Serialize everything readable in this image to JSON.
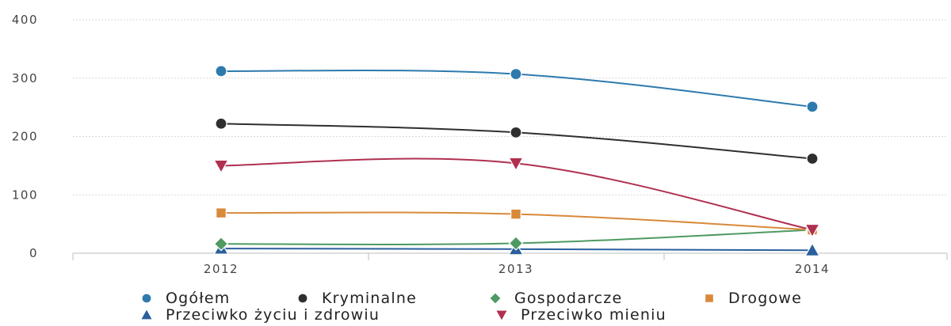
{
  "chart_data": {
    "type": "line",
    "categories": [
      "2012",
      "2013",
      "2014"
    ],
    "ylim": [
      0,
      400
    ],
    "yticks": [
      0,
      100,
      200,
      300,
      400
    ],
    "grid": true,
    "legend_position": "bottom",
    "series": [
      {
        "name": "Ogółem",
        "values": [
          312,
          307,
          251
        ],
        "color": "#2e7aad",
        "marker": "circle"
      },
      {
        "name": "Kryminalne",
        "values": [
          222,
          207,
          162
        ],
        "color": "#2f2f2f",
        "marker": "circle"
      },
      {
        "name": "Gospodarcze",
        "values": [
          16,
          17,
          40
        ],
        "color": "#4e9a62",
        "marker": "diamond"
      },
      {
        "name": "Drogowe",
        "values": [
          69,
          67,
          40
        ],
        "color": "#d8893a",
        "marker": "square"
      },
      {
        "name": "Przeciwko życiu i zdrowiu",
        "values": [
          8,
          7,
          5
        ],
        "color": "#2b5f9e",
        "marker": "triangle-up"
      },
      {
        "name": "Przeciwko mieniu",
        "values": [
          150,
          154,
          40
        ],
        "color": "#b03050",
        "marker": "triangle-down"
      }
    ]
  }
}
